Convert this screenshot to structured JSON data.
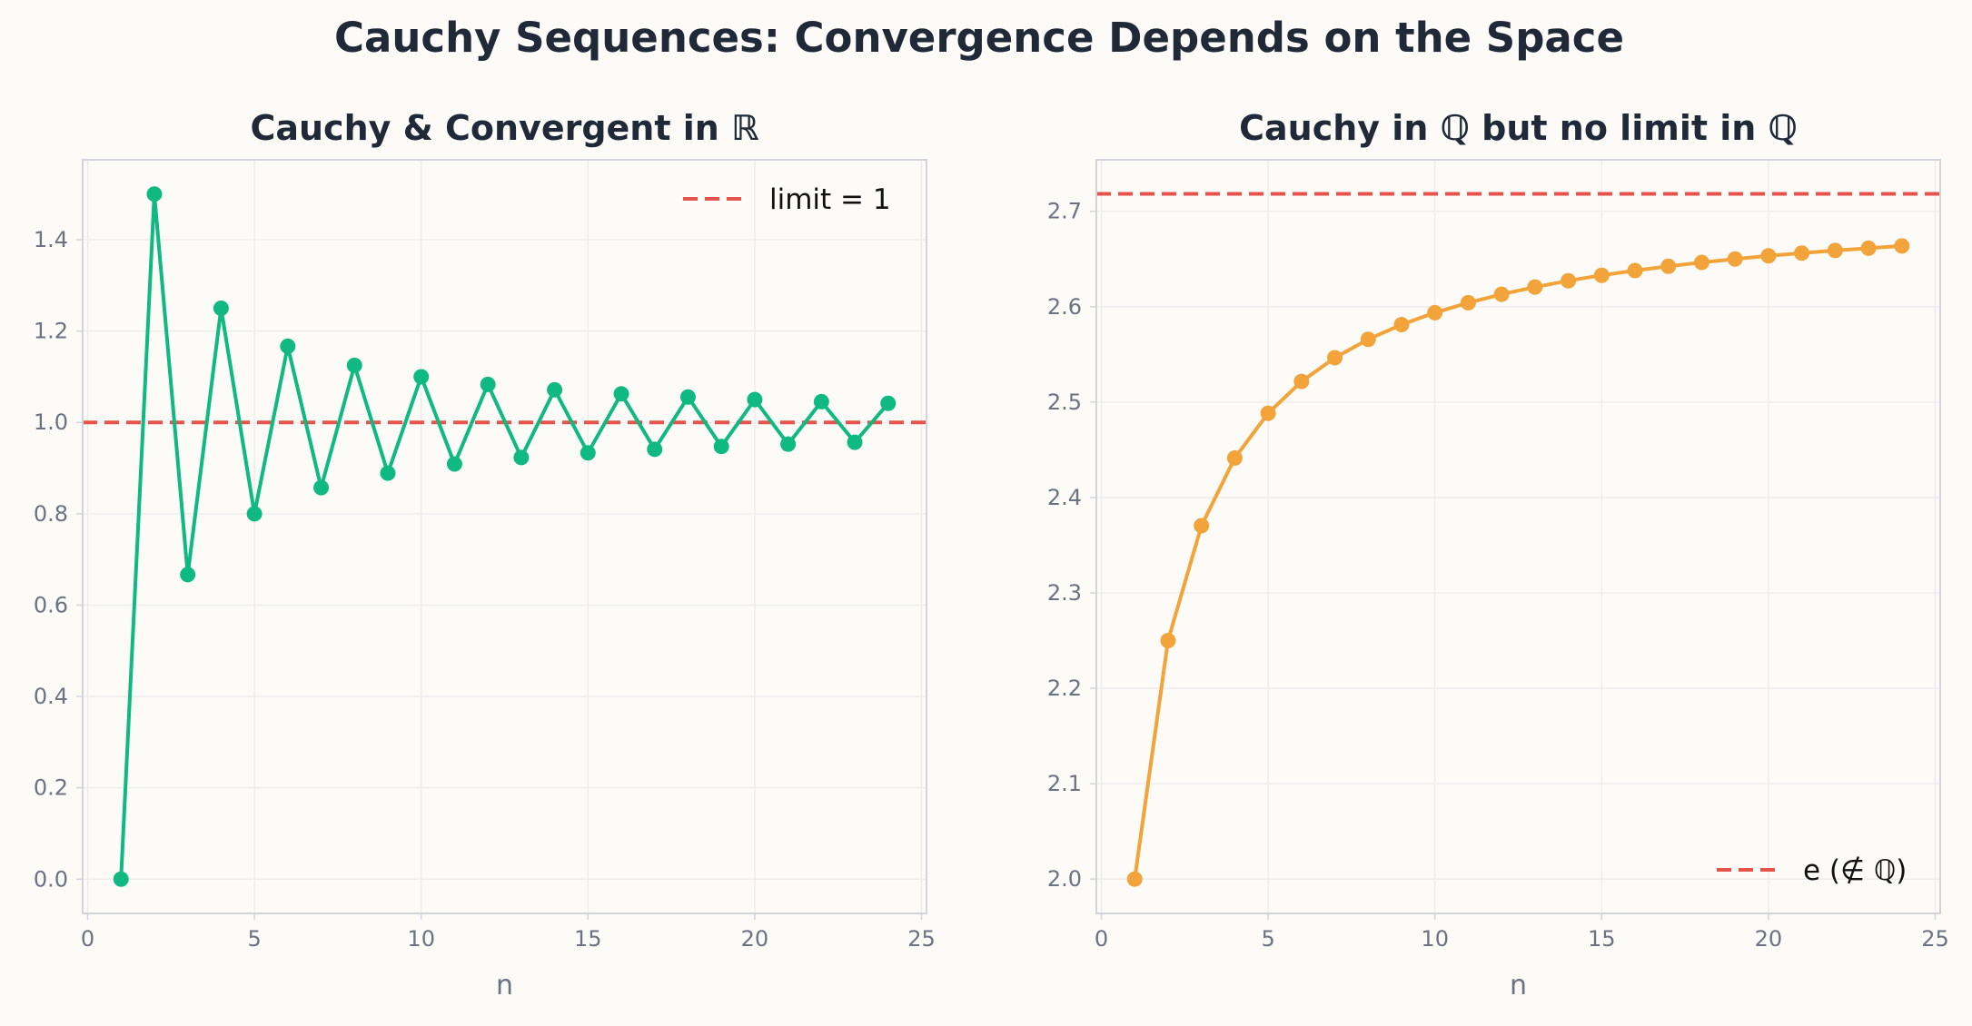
{
  "figure": {
    "title": "Cauchy Sequences: Convergence Depends on the Space"
  },
  "colors": {
    "background": "#fcfbf7",
    "panel_border": "#d1d5db",
    "grid": "#ebebeb",
    "reference_line": "#e5534b",
    "series_left": "#10b981",
    "series_right": "#f2a33a",
    "text": "#1f2937",
    "tick_text": "#6b7280"
  },
  "chart_data": [
    {
      "type": "line",
      "title": "Cauchy & Convergent in ℝ",
      "xlabel": "n",
      "ylabel": "",
      "xlim": [
        -0.15,
        25.15
      ],
      "ylim": [
        -0.075,
        1.575
      ],
      "xticks": [
        0,
        5,
        10,
        15,
        20,
        25
      ],
      "yticks": [
        0.0,
        0.2,
        0.4,
        0.6,
        0.8,
        1.0,
        1.2,
        1.4
      ],
      "ytick_labels": [
        "0.0",
        "0.2",
        "0.4",
        "0.6",
        "0.8",
        "1.0",
        "1.2",
        "1.4"
      ],
      "grid": true,
      "legend_position": "upper right",
      "series": [
        {
          "x": [
            1,
            2,
            3,
            4,
            5,
            6,
            7,
            8,
            9,
            10,
            11,
            12,
            13,
            14,
            15,
            16,
            17,
            18,
            19,
            20,
            21,
            22,
            23,
            24
          ],
          "values": [
            0.0,
            1.5,
            0.6667,
            1.25,
            0.8,
            1.1667,
            0.8571,
            1.125,
            0.8889,
            1.1,
            0.9091,
            1.0833,
            0.9231,
            1.0714,
            0.9333,
            1.0625,
            0.9412,
            1.0556,
            0.9474,
            1.05,
            0.9524,
            1.0455,
            0.9565,
            1.0417
          ]
        }
      ],
      "reference_line": {
        "name": "limit = 1",
        "y": 1.0,
        "style": "dashed"
      }
    },
    {
      "type": "line",
      "title": "Cauchy in ℚ but no limit in ℚ",
      "xlabel": "n",
      "ylabel": "",
      "xlim": [
        -0.15,
        25.15
      ],
      "ylim": [
        1.964,
        2.754
      ],
      "xticks": [
        0,
        5,
        10,
        15,
        20,
        25
      ],
      "yticks": [
        2.0,
        2.1,
        2.2,
        2.3,
        2.4,
        2.5,
        2.6,
        2.7
      ],
      "ytick_labels": [
        "2.0",
        "2.1",
        "2.2",
        "2.3",
        "2.4",
        "2.5",
        "2.6",
        "2.7"
      ],
      "grid": true,
      "legend_position": "lower right",
      "series": [
        {
          "x": [
            1,
            2,
            3,
            4,
            5,
            6,
            7,
            8,
            9,
            10,
            11,
            12,
            13,
            14,
            15,
            16,
            17,
            18,
            19,
            20,
            21,
            22,
            23,
            24
          ],
          "values": [
            2.0,
            2.25,
            2.3704,
            2.4414,
            2.4883,
            2.5216,
            2.5465,
            2.5658,
            2.5812,
            2.5937,
            2.6042,
            2.613,
            2.6206,
            2.6272,
            2.6329,
            2.6379,
            2.6424,
            2.6464,
            2.65,
            2.6533,
            2.6562,
            2.6589,
            2.6613,
            2.6637
          ]
        }
      ],
      "reference_line": {
        "name": "e (∉ ℚ)",
        "y": 2.71828,
        "style": "dashed"
      }
    }
  ]
}
